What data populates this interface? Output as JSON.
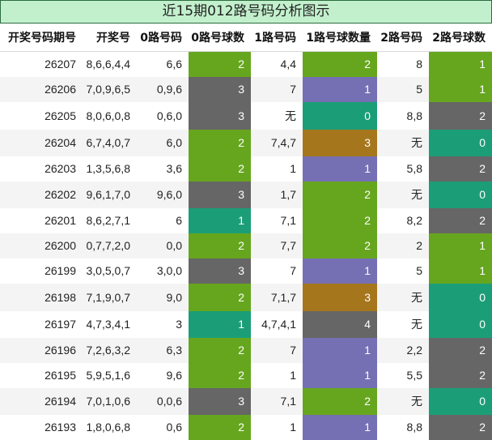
{
  "title": "近15期012路号码分析图示",
  "headers": [
    "开奖号码期号",
    "开奖号",
    "0路号码",
    "0路号球数",
    "1路号码",
    "1路号球数量",
    "2路号码",
    "2路号球数"
  ],
  "rows": [
    {
      "period": "26207",
      "numbers": "8,6,6,4,4",
      "r0": "6,6",
      "c0": "2",
      "r1": "4,4",
      "c1": "2",
      "r2": "8",
      "c2": "1"
    },
    {
      "period": "26206",
      "numbers": "7,0,9,6,5",
      "r0": "0,9,6",
      "c0": "3",
      "r1": "7",
      "c1": "1",
      "r2": "5",
      "c2": "1"
    },
    {
      "period": "26205",
      "numbers": "8,0,6,0,8",
      "r0": "0,6,0",
      "c0": "3",
      "r1": "无",
      "c1": "0",
      "r2": "8,8",
      "c2": "2"
    },
    {
      "period": "26204",
      "numbers": "6,7,4,0,7",
      "r0": "6,0",
      "c0": "2",
      "r1": "7,4,7",
      "c1": "3",
      "r2": "无",
      "c2": "0"
    },
    {
      "period": "26203",
      "numbers": "1,3,5,6,8",
      "r0": "3,6",
      "c0": "2",
      "r1": "1",
      "c1": "1",
      "r2": "5,8",
      "c2": "2"
    },
    {
      "period": "26202",
      "numbers": "9,6,1,7,0",
      "r0": "9,6,0",
      "c0": "3",
      "r1": "1,7",
      "c1": "2",
      "r2": "无",
      "c2": "0"
    },
    {
      "period": "26201",
      "numbers": "8,6,2,7,1",
      "r0": "6",
      "c0": "1",
      "r1": "7,1",
      "c1": "2",
      "r2": "8,2",
      "c2": "2"
    },
    {
      "period": "26200",
      "numbers": "0,7,7,2,0",
      "r0": "0,0",
      "c0": "2",
      "r1": "7,7",
      "c1": "2",
      "r2": "2",
      "c2": "1"
    },
    {
      "period": "26199",
      "numbers": "3,0,5,0,7",
      "r0": "3,0,0",
      "c0": "3",
      "r1": "7",
      "c1": "1",
      "r2": "5",
      "c2": "1"
    },
    {
      "period": "26198",
      "numbers": "7,1,9,0,7",
      "r0": "9,0",
      "c0": "2",
      "r1": "7,1,7",
      "c1": "3",
      "r2": "无",
      "c2": "0"
    },
    {
      "period": "26197",
      "numbers": "4,7,3,4,1",
      "r0": "3",
      "c0": "1",
      "r1": "4,7,4,1",
      "c1": "4",
      "r2": "无",
      "c2": "0"
    },
    {
      "period": "26196",
      "numbers": "7,2,6,3,2",
      "r0": "6,3",
      "c0": "2",
      "r1": "7",
      "c1": "1",
      "r2": "2,2",
      "c2": "2"
    },
    {
      "period": "26195",
      "numbers": "5,9,5,1,6",
      "r0": "9,6",
      "c0": "2",
      "r1": "1",
      "c1": "1",
      "r2": "5,5",
      "c2": "2"
    },
    {
      "period": "26194",
      "numbers": "7,0,1,0,6",
      "r0": "0,0,6",
      "c0": "3",
      "r1": "7,1",
      "c1": "2",
      "r2": "无",
      "c2": "0"
    },
    {
      "period": "26193",
      "numbers": "1,8,0,6,8",
      "r0": "0,6",
      "c0": "2",
      "r1": "1",
      "c1": "1",
      "r2": "8,8",
      "c2": "2"
    }
  ],
  "count_colors": {
    "0": "#1b9e77",
    "1": "#7570b3",
    "2": "#666666",
    "3": "#a6761d",
    "4": "#666666"
  }
}
